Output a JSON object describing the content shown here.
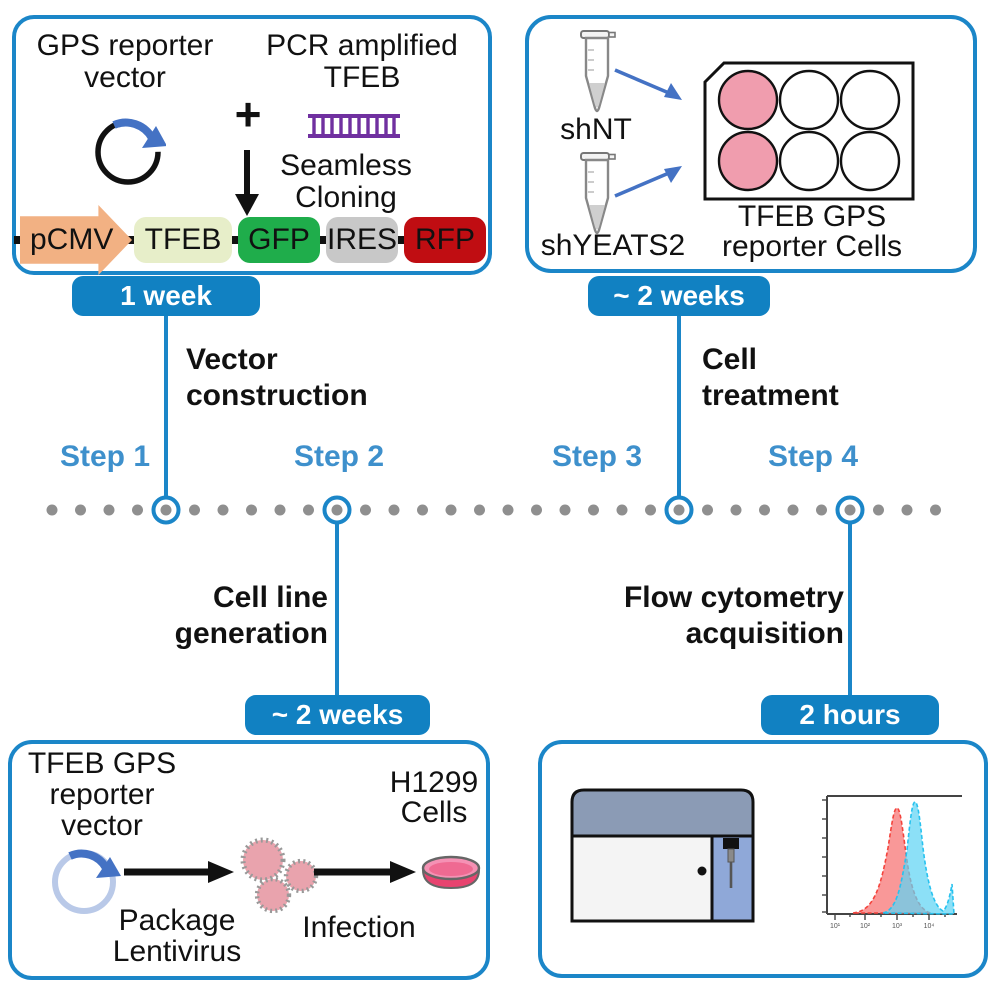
{
  "colors": {
    "frame_blue": "#1b86c8",
    "badge_blue": "#1181c2",
    "step_blue": "#3e90cc",
    "arrow_blue": "#4472c4",
    "dot_gray": "#8f8f8f",
    "pcmv_orange": "#f2b183",
    "tfeb_pale_green": "#e7eec9",
    "gfp_green": "#1fad4b",
    "ires_gray": "#c8c8c8",
    "rfp_red": "#c00d12",
    "well_pink": "#f09dae",
    "virus_pink": "#e9a3ad",
    "dish_pink": "#f2799f",
    "histogram_red_peak": "#f47070",
    "histogram_cyan_peak": "#5fd4f4"
  },
  "box1": {
    "title1": "GPS reporter",
    "title2": "vector",
    "pcr1": "PCR amplified",
    "pcr2": "TFEB",
    "plus": "+",
    "clone1": "Seamless",
    "clone2": "Cloning",
    "construct": [
      "pCMV",
      "TFEB",
      "GFP",
      "IRES",
      "RFP"
    ],
    "badge": "1 week"
  },
  "box3": {
    "tube1": "shNT",
    "tube2": "shYEATS2",
    "caption1": "TFEB GPS",
    "caption2": "reporter Cells",
    "badge": "~ 2 weeks"
  },
  "box2": {
    "title1": "TFEB GPS",
    "title2": "reporter",
    "title3": "vector",
    "package1": "Package",
    "package2": "Lentivirus",
    "infection": "Infection",
    "cells1": "H1299",
    "cells2": "Cells",
    "badge": "~ 2 weeks"
  },
  "box4": {
    "badge": "2 hours"
  },
  "timeline": {
    "steps": [
      "Step 1",
      "Step 2",
      "Step 3",
      "Step 4"
    ],
    "phase1a": "Vector",
    "phase1b": "construction",
    "phase2a": "Cell line",
    "phase2b": "generation",
    "phase3a": "Cell",
    "phase3b": "treatment",
    "phase4a": "Flow cytometry",
    "phase4b": "acquisition"
  }
}
